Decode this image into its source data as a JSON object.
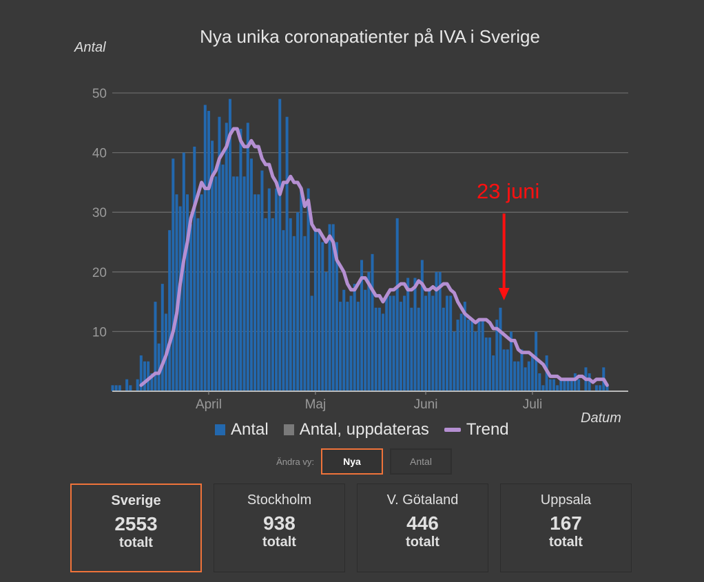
{
  "chart_data": {
    "type": "bar",
    "title": "Nya unika coronapatienter på IVA i Sverige",
    "ylabel": "Antal",
    "xlabel": "Datum",
    "ylim": [
      0,
      50
    ],
    "yticks": [
      10,
      20,
      30,
      40,
      50
    ],
    "xtick_labels": [
      {
        "label": "April",
        "date": "04-01"
      },
      {
        "label": "Maj",
        "date": "05-01"
      },
      {
        "label": "Juni",
        "date": "06-01"
      },
      {
        "label": "Juli",
        "date": "07-01"
      }
    ],
    "grid": true,
    "legend": [
      {
        "name": "Antal",
        "color": "#2368ae"
      },
      {
        "name": "Antal, uppdateras",
        "color": "#7a7a7a"
      },
      {
        "name": "Trend",
        "color": "#b58fd2"
      }
    ],
    "legend_position": "bottom",
    "annotation": {
      "text": "23 juni",
      "date": "06-23",
      "color": "#ff1010"
    },
    "dates": [
      "03-05",
      "03-06",
      "03-07",
      "03-08",
      "03-09",
      "03-10",
      "03-11",
      "03-12",
      "03-13",
      "03-14",
      "03-15",
      "03-16",
      "03-17",
      "03-18",
      "03-19",
      "03-20",
      "03-21",
      "03-22",
      "03-23",
      "03-24",
      "03-25",
      "03-26",
      "03-27",
      "03-28",
      "03-29",
      "03-30",
      "03-31",
      "04-01",
      "04-02",
      "04-03",
      "04-04",
      "04-05",
      "04-06",
      "04-07",
      "04-08",
      "04-09",
      "04-10",
      "04-11",
      "04-12",
      "04-13",
      "04-14",
      "04-15",
      "04-16",
      "04-17",
      "04-18",
      "04-19",
      "04-20",
      "04-21",
      "04-22",
      "04-23",
      "04-24",
      "04-25",
      "04-26",
      "04-27",
      "04-28",
      "04-29",
      "04-30",
      "05-01",
      "05-02",
      "05-03",
      "05-04",
      "05-05",
      "05-06",
      "05-07",
      "05-08",
      "05-09",
      "05-10",
      "05-11",
      "05-12",
      "05-13",
      "05-14",
      "05-15",
      "05-16",
      "05-17",
      "05-18",
      "05-19",
      "05-20",
      "05-21",
      "05-22",
      "05-23",
      "05-24",
      "05-25",
      "05-26",
      "05-27",
      "05-28",
      "05-29",
      "05-30",
      "05-31",
      "06-01",
      "06-02",
      "06-03",
      "06-04",
      "06-05",
      "06-06",
      "06-07",
      "06-08",
      "06-09",
      "06-10",
      "06-11",
      "06-12",
      "06-13",
      "06-14",
      "06-15",
      "06-16",
      "06-17",
      "06-18",
      "06-19",
      "06-20",
      "06-21",
      "06-22",
      "06-23",
      "06-24",
      "06-25",
      "06-26",
      "06-27",
      "06-28",
      "06-29",
      "06-30",
      "07-01",
      "07-02",
      "07-03",
      "07-04",
      "07-05",
      "07-06",
      "07-07",
      "07-08",
      "07-09",
      "07-10",
      "07-11",
      "07-12",
      "07-13",
      "07-14",
      "07-15",
      "07-16",
      "07-17",
      "07-18",
      "07-19",
      "07-20",
      "07-21",
      "07-22"
    ],
    "series": [
      {
        "name": "Antal",
        "values": [
          1,
          1,
          1,
          0,
          2,
          1,
          0,
          2,
          6,
          5,
          5,
          3,
          15,
          8,
          18,
          13,
          27,
          39,
          33,
          31,
          40,
          33,
          28,
          41,
          29,
          33,
          48,
          47,
          42,
          36,
          46,
          38,
          45,
          49,
          36,
          36,
          44,
          36,
          45,
          39,
          33,
          33,
          37,
          29,
          34,
          29,
          34,
          49,
          27,
          46,
          29,
          26,
          30,
          34,
          26,
          34,
          16,
          27,
          27,
          25,
          20,
          28,
          28,
          25,
          15,
          17,
          15,
          16,
          18,
          15,
          22,
          17,
          20,
          23,
          14,
          14,
          13,
          16,
          16,
          16,
          29,
          15,
          16,
          19,
          14,
          19,
          14,
          22,
          16,
          17,
          16,
          20,
          20,
          14,
          16,
          16,
          10,
          12,
          13,
          15,
          12,
          12,
          10,
          12,
          12,
          9,
          9,
          6,
          12,
          14,
          7,
          7,
          10,
          5,
          5,
          7,
          4,
          5,
          6,
          10,
          3,
          1,
          6,
          2,
          2,
          1,
          2,
          2,
          2,
          2,
          3,
          2,
          0,
          4,
          3,
          0,
          1,
          1,
          4,
          1
        ]
      },
      {
        "name": "Trend",
        "values": [
          null,
          null,
          null,
          null,
          null,
          null,
          null,
          null,
          1,
          1.5,
          2,
          2.5,
          3,
          3,
          4.5,
          6,
          8,
          10,
          13,
          18,
          22,
          25,
          29,
          31,
          33,
          35,
          34,
          34,
          36,
          37,
          39,
          40,
          41,
          43,
          44,
          44,
          42,
          41,
          41,
          42,
          41,
          41,
          39,
          38,
          38,
          36,
          35,
          33,
          35,
          35,
          36,
          35,
          35,
          34,
          31,
          32,
          28,
          27,
          27,
          26,
          25,
          26,
          25,
          22,
          21,
          20,
          18,
          17,
          17,
          18,
          19,
          19,
          18,
          17,
          16,
          16,
          15,
          16,
          17,
          17,
          17.5,
          18,
          18,
          17,
          17,
          17.5,
          18.5,
          18,
          17,
          17,
          17.5,
          17,
          17.5,
          18,
          18,
          17,
          16.5,
          15,
          14,
          13,
          12.5,
          12,
          11.5,
          12,
          12,
          12,
          11.5,
          10.5,
          10.5,
          10,
          9.5,
          9,
          8.5,
          8.5,
          7,
          6.5,
          6.5,
          6.5,
          6,
          5.5,
          5,
          4.5,
          3.5,
          2.5,
          2.5,
          2.5,
          2,
          2,
          2,
          2,
          2,
          2.5,
          2.5,
          2,
          2,
          1.5,
          2,
          2,
          2,
          1
        ]
      }
    ]
  },
  "controls": {
    "label": "Ändra vy:",
    "buttons": [
      {
        "label": "Nya",
        "active": true
      },
      {
        "label": "Antal",
        "active": false
      }
    ]
  },
  "cards": [
    {
      "name": "Sverige",
      "value": "2553",
      "unit": "totalt",
      "active": true
    },
    {
      "name": "Stockholm",
      "value": "938",
      "unit": "totalt",
      "active": false
    },
    {
      "name": "V. Götaland",
      "value": "446",
      "unit": "totalt",
      "active": false
    },
    {
      "name": "Uppsala",
      "value": "167",
      "unit": "totalt",
      "active": false
    }
  ],
  "colors": {
    "background": "#393939",
    "accent": "#f0733a"
  }
}
